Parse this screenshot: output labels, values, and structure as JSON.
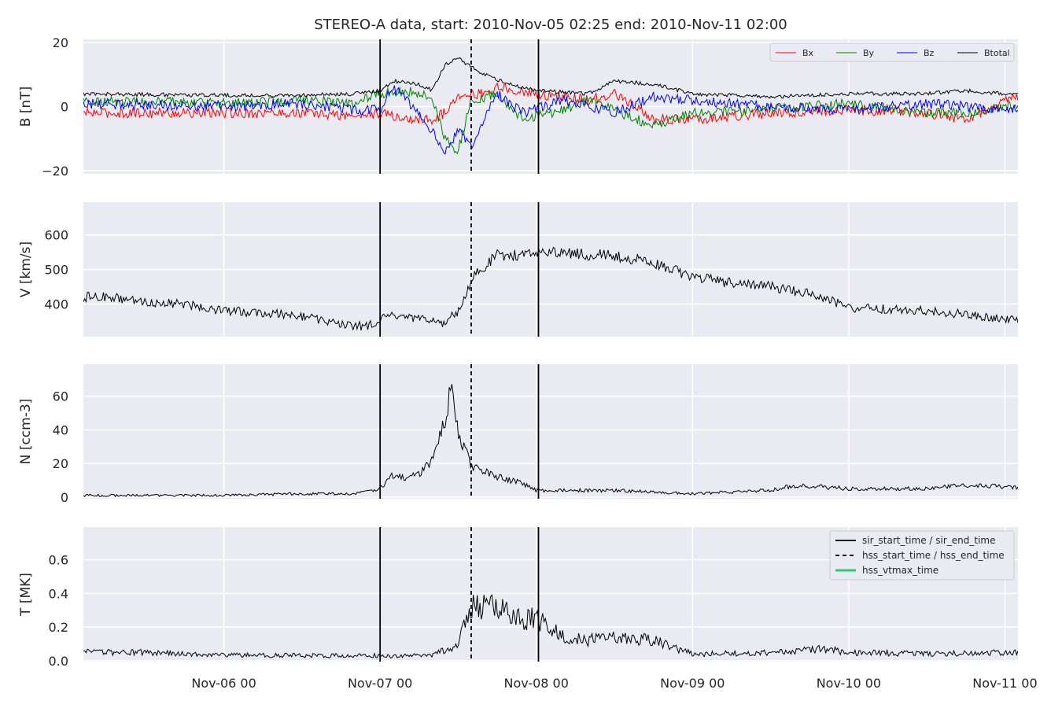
{
  "chart_data": {
    "title": "STEREO-A data, start: 2010-Nov-05 02:25  end: 2010-Nov-11 02:00",
    "type": "line",
    "x_range": [
      "2010-11-05 02:25",
      "2010-11-11 02:00"
    ],
    "x_ticks": [
      "Nov-06 00",
      "Nov-07 00",
      "Nov-08 00",
      "Nov-09 00",
      "Nov-10 00",
      "Nov-11 00"
    ],
    "grid": true,
    "events": {
      "sir_start_time": "2010-11-07 00:00",
      "hss_start_time": "2010-11-07 14:00",
      "sir_end_time": "2010-11-08 00:20"
    },
    "event_legend": [
      {
        "label": "sir_start_time / sir_end_time",
        "color": "#000000",
        "style": "solid"
      },
      {
        "label": "hss_start_time / hss_end_time",
        "color": "#000000",
        "style": "dashed"
      },
      {
        "label": "hss_vtmax_time",
        "color": "#2ecc71",
        "style": "solid"
      }
    ],
    "panels": [
      {
        "ylabel": "B [nT]",
        "ylim": [
          -21,
          21
        ],
        "yticks": [
          "20",
          "0",
          "−20"
        ],
        "ytick_values": [
          20,
          0,
          -20
        ],
        "legend_placement": "top-right",
        "series": [
          {
            "name": "Bx",
            "color": "#ff0000",
            "points": [
              [
                "2010-11-05 02:25",
                -2
              ],
              [
                "2010-11-06 00:00",
                -2
              ],
              [
                "2010-11-06 12:00",
                -2
              ],
              [
                "2010-11-06 20:00",
                -3
              ],
              [
                "2010-11-07 00:00",
                -2
              ],
              [
                "2010-11-07 04:00",
                -4
              ],
              [
                "2010-11-07 08:00",
                -4
              ],
              [
                "2010-11-07 10:00",
                -2
              ],
              [
                "2010-11-07 12:00",
                4
              ],
              [
                "2010-11-07 16:00",
                4
              ],
              [
                "2010-11-07 18:00",
                6
              ],
              [
                "2010-11-08 00:00",
                4
              ],
              [
                "2010-11-08 08:00",
                2
              ],
              [
                "2010-11-08 12:00",
                4
              ],
              [
                "2010-11-08 18:00",
                -4
              ],
              [
                "2010-11-09 00:00",
                -4
              ],
              [
                "2010-11-09 12:00",
                -2
              ],
              [
                "2010-11-10 00:00",
                -1
              ],
              [
                "2010-11-10 12:00",
                -2
              ],
              [
                "2010-11-10 18:00",
                -4
              ],
              [
                "2010-11-11 00:00",
                2
              ],
              [
                "2010-11-11 02:00",
                3
              ]
            ]
          },
          {
            "name": "By",
            "color": "#008000",
            "points": [
              [
                "2010-11-05 02:25",
                2
              ],
              [
                "2010-11-06 00:00",
                1
              ],
              [
                "2010-11-06 12:00",
                2
              ],
              [
                "2010-11-06 20:00",
                1
              ],
              [
                "2010-11-07 00:00",
                4
              ],
              [
                "2010-11-07 04:00",
                5
              ],
              [
                "2010-11-07 08:00",
                3
              ],
              [
                "2010-11-07 10:00",
                -10
              ],
              [
                "2010-11-07 12:00",
                -14
              ],
              [
                "2010-11-07 14:00",
                2
              ],
              [
                "2010-11-07 18:00",
                4
              ],
              [
                "2010-11-07 22:00",
                -4
              ],
              [
                "2010-11-08 04:00",
                -1
              ],
              [
                "2010-11-08 08:00",
                2
              ],
              [
                "2010-11-08 18:00",
                -6
              ],
              [
                "2010-11-09 00:00",
                -2
              ],
              [
                "2010-11-09 12:00",
                -1
              ],
              [
                "2010-11-10 00:00",
                1
              ],
              [
                "2010-11-10 12:00",
                -2
              ],
              [
                "2010-11-10 18:00",
                -2
              ],
              [
                "2010-11-11 02:00",
                1
              ]
            ]
          },
          {
            "name": "Bz",
            "color": "#0000ff",
            "points": [
              [
                "2010-11-05 02:25",
                1
              ],
              [
                "2010-11-06 00:00",
                0
              ],
              [
                "2010-11-06 12:00",
                1
              ],
              [
                "2010-11-06 20:00",
                -1
              ],
              [
                "2010-11-07 00:00",
                -1
              ],
              [
                "2010-11-07 02:00",
                6
              ],
              [
                "2010-11-07 06:00",
                -2
              ],
              [
                "2010-11-07 10:00",
                -14
              ],
              [
                "2010-11-07 12:00",
                -8
              ],
              [
                "2010-11-07 14:00",
                -12
              ],
              [
                "2010-11-07 18:00",
                4
              ],
              [
                "2010-11-07 22:00",
                -2
              ],
              [
                "2010-11-08 04:00",
                2
              ],
              [
                "2010-11-08 12:00",
                -2
              ],
              [
                "2010-11-08 18:00",
                3
              ],
              [
                "2010-11-09 00:00",
                2
              ],
              [
                "2010-11-09 12:00",
                0
              ],
              [
                "2010-11-10 00:00",
                -1
              ],
              [
                "2010-11-10 12:00",
                1
              ],
              [
                "2010-11-11 00:00",
                -1
              ],
              [
                "2010-11-11 02:00",
                -1
              ]
            ]
          },
          {
            "name": "Btotal",
            "color": "#000000",
            "points": [
              [
                "2010-11-05 02:25",
                4
              ],
              [
                "2010-11-06 00:00",
                3.5
              ],
              [
                "2010-11-06 12:00",
                3.5
              ],
              [
                "2010-11-06 20:00",
                4
              ],
              [
                "2010-11-07 00:00",
                5
              ],
              [
                "2010-11-07 02:00",
                8
              ],
              [
                "2010-11-07 06:00",
                7
              ],
              [
                "2010-11-07 08:00",
                5
              ],
              [
                "2010-11-07 10:00",
                13
              ],
              [
                "2010-11-07 12:00",
                15
              ],
              [
                "2010-11-07 16:00",
                10
              ],
              [
                "2010-11-07 20:00",
                7
              ],
              [
                "2010-11-08 00:00",
                5
              ],
              [
                "2010-11-08 08:00",
                4
              ],
              [
                "2010-11-08 12:00",
                8
              ],
              [
                "2010-11-08 18:00",
                7
              ],
              [
                "2010-11-09 00:00",
                4
              ],
              [
                "2010-11-09 12:00",
                3
              ],
              [
                "2010-11-10 00:00",
                4
              ],
              [
                "2010-11-10 12:00",
                4
              ],
              [
                "2010-11-10 18:00",
                5
              ],
              [
                "2010-11-11 00:00",
                4
              ],
              [
                "2010-11-11 02:00",
                4
              ]
            ]
          }
        ]
      },
      {
        "ylabel": "V [km/s]",
        "ylim": [
          305,
          695
        ],
        "yticks": [
          "400",
          "500",
          "600"
        ],
        "ytick_values": [
          400,
          500,
          600
        ],
        "series": [
          {
            "name": "",
            "color": "#000000",
            "points": [
              [
                "2010-11-05 02:25",
                420
              ],
              [
                "2010-11-05 06:00",
                420
              ],
              [
                "2010-11-05 12:00",
                405
              ],
              [
                "2010-11-05 18:00",
                400
              ],
              [
                "2010-11-06 00:00",
                380
              ],
              [
                "2010-11-06 06:00",
                375
              ],
              [
                "2010-11-06 12:00",
                365
              ],
              [
                "2010-11-06 18:00",
                340
              ],
              [
                "2010-11-06 22:00",
                335
              ],
              [
                "2010-11-07 00:00",
                355
              ],
              [
                "2010-11-07 02:00",
                365
              ],
              [
                "2010-11-07 06:00",
                355
              ],
              [
                "2010-11-07 10:00",
                345
              ],
              [
                "2010-11-07 12:00",
                380
              ],
              [
                "2010-11-07 14:00",
                470
              ],
              [
                "2010-11-07 16:00",
                510
              ],
              [
                "2010-11-07 18:00",
                540
              ],
              [
                "2010-11-07 22:00",
                540
              ],
              [
                "2010-11-08 00:00",
                555
              ],
              [
                "2010-11-08 06:00",
                545
              ],
              [
                "2010-11-08 12:00",
                540
              ],
              [
                "2010-11-08 18:00",
                520
              ],
              [
                "2010-11-09 00:00",
                480
              ],
              [
                "2010-11-09 06:00",
                460
              ],
              [
                "2010-11-09 12:00",
                450
              ],
              [
                "2010-11-09 18:00",
                430
              ],
              [
                "2010-11-10 00:00",
                390
              ],
              [
                "2010-11-10 06:00",
                385
              ],
              [
                "2010-11-10 12:00",
                380
              ],
              [
                "2010-11-10 18:00",
                370
              ],
              [
                "2010-11-11 00:00",
                355
              ],
              [
                "2010-11-11 02:00",
                350
              ]
            ]
          }
        ]
      },
      {
        "ylabel": "N [ccm-3]",
        "ylim": [
          -1,
          79
        ],
        "yticks": [
          "0",
          "20",
          "40",
          "60"
        ],
        "ytick_values": [
          0,
          20,
          40,
          60
        ],
        "series": [
          {
            "name": "",
            "color": "#000000",
            "points": [
              [
                "2010-11-05 02:25",
                1
              ],
              [
                "2010-11-06 00:00",
                1
              ],
              [
                "2010-11-06 12:00",
                2
              ],
              [
                "2010-11-06 20:00",
                2
              ],
              [
                "2010-11-07 00:00",
                5
              ],
              [
                "2010-11-07 02:00",
                13
              ],
              [
                "2010-11-07 04:00",
                11
              ],
              [
                "2010-11-07 06:00",
                14
              ],
              [
                "2010-11-07 08:00",
                22
              ],
              [
                "2010-11-07 10:00",
                45
              ],
              [
                "2010-11-07 11:00",
                68
              ],
              [
                "2010-11-07 12:00",
                40
              ],
              [
                "2010-11-07 14:00",
                18
              ],
              [
                "2010-11-07 18:00",
                12
              ],
              [
                "2010-11-07 22:00",
                8
              ],
              [
                "2010-11-08 00:00",
                4
              ],
              [
                "2010-11-08 12:00",
                4
              ],
              [
                "2010-11-09 00:00",
                2
              ],
              [
                "2010-11-09 12:00",
                4
              ],
              [
                "2010-11-09 16:00",
                7
              ],
              [
                "2010-11-10 00:00",
                5
              ],
              [
                "2010-11-10 12:00",
                5
              ],
              [
                "2010-11-10 18:00",
                7
              ],
              [
                "2010-11-11 02:00",
                6
              ]
            ]
          }
        ]
      },
      {
        "ylabel": "T [MK]",
        "ylim": [
          -0.005,
          0.795
        ],
        "yticks": [
          "0.0",
          "0.2",
          "0.4",
          "0.6"
        ],
        "ytick_values": [
          0,
          0.2,
          0.4,
          0.6
        ],
        "legend_placement": "top-right",
        "series": [
          {
            "name": "",
            "color": "#000000",
            "points": [
              [
                "2010-11-05 02:25",
                0.05
              ],
              [
                "2010-11-05 12:00",
                0.05
              ],
              [
                "2010-11-06 00:00",
                0.035
              ],
              [
                "2010-11-06 12:00",
                0.03
              ],
              [
                "2010-11-07 00:00",
                0.03
              ],
              [
                "2010-11-07 08:00",
                0.03
              ],
              [
                "2010-11-07 12:00",
                0.1
              ],
              [
                "2010-11-07 14:00",
                0.32
              ],
              [
                "2010-11-07 18:00",
                0.35
              ],
              [
                "2010-11-07 20:00",
                0.25
              ],
              [
                "2010-11-08 00:00",
                0.25
              ],
              [
                "2010-11-08 04:00",
                0.15
              ],
              [
                "2010-11-08 08:00",
                0.12
              ],
              [
                "2010-11-08 12:00",
                0.15
              ],
              [
                "2010-11-08 18:00",
                0.12
              ],
              [
                "2010-11-09 00:00",
                0.04
              ],
              [
                "2010-11-09 12:00",
                0.05
              ],
              [
                "2010-11-09 20:00",
                0.07
              ],
              [
                "2010-11-10 00:00",
                0.05
              ],
              [
                "2010-11-10 12:00",
                0.04
              ],
              [
                "2010-11-11 02:00",
                0.05
              ]
            ]
          }
        ]
      }
    ]
  }
}
